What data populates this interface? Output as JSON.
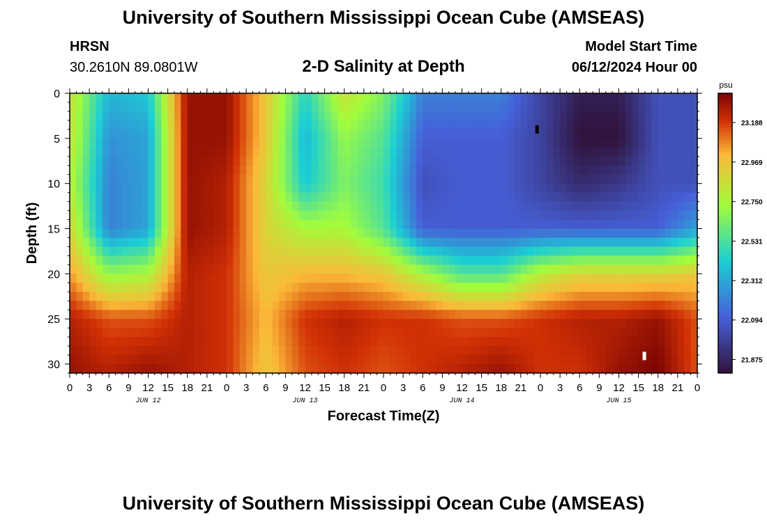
{
  "header": {
    "title": "University of Southern Mississippi Ocean Cube (AMSEAS)",
    "station": "HRSN",
    "coords": "30.2610N  89.0801W",
    "plot_title": "2-D Salinity at Depth",
    "model_start_label": "Model Start Time",
    "model_start_value": "06/12/2024 Hour 00"
  },
  "footer": {
    "title": "University of Southern Mississippi Ocean Cube (AMSEAS)"
  },
  "colors": {
    "min": "#30123b",
    "low": "#4660d8",
    "mid_low": "#1bcfd4",
    "mid": "#a2fc3c",
    "mid_high": "#fbb938",
    "max": "#7a0403"
  },
  "chart_data": {
    "type": "heatmap",
    "title": "2-D Salinity at Depth",
    "xlabel": "Forecast Time(Z)",
    "ylabel": "Depth (ft)",
    "colorbar_unit": "psu",
    "colorbar_ticks": [
      "23.188",
      "22.969",
      "22.750",
      "22.531",
      "22.312",
      "22.094",
      "21.875"
    ],
    "colorbar_range": [
      21.8,
      23.35
    ],
    "xlim": [
      0,
      96
    ],
    "ylim": [
      31,
      0
    ],
    "x_tick_labels": [
      "0",
      "3",
      "6",
      "9",
      "12",
      "15",
      "18",
      "21",
      "0",
      "3",
      "6",
      "9",
      "12",
      "15",
      "18",
      "21",
      "0",
      "3",
      "6",
      "9",
      "12",
      "15",
      "18",
      "21",
      "0",
      "3",
      "6",
      "9",
      "12",
      "15",
      "18",
      "21",
      "0"
    ],
    "day_labels": [
      "JUN 12",
      "JUN 13",
      "JUN 14",
      "JUN 15"
    ],
    "y_ticks": [
      0,
      5,
      10,
      15,
      20,
      25,
      30
    ],
    "x_hours": [
      0,
      6,
      12,
      18,
      24,
      30,
      36,
      42,
      48,
      54,
      60,
      66,
      72,
      78,
      84,
      90,
      96
    ],
    "depths_ft": [
      0,
      5,
      10,
      15,
      20,
      25,
      31
    ],
    "values": [
      [
        22.85,
        22.35,
        22.4,
        23.3,
        23.3,
        22.95,
        22.45,
        22.85,
        22.65,
        22.2,
        22.2,
        22.2,
        22.0,
        21.85,
        21.85,
        22.05,
        22.05
      ],
      [
        22.85,
        22.25,
        22.3,
        23.3,
        23.3,
        22.95,
        22.35,
        22.7,
        22.55,
        22.1,
        22.1,
        22.1,
        22.0,
        21.8,
        21.8,
        22.05,
        22.05
      ],
      [
        22.8,
        22.2,
        22.3,
        23.3,
        23.25,
        22.9,
        22.4,
        22.65,
        22.5,
        22.05,
        22.1,
        22.1,
        22.0,
        21.9,
        21.95,
        22.05,
        22.05
      ],
      [
        22.9,
        22.2,
        22.3,
        23.3,
        23.25,
        22.9,
        22.75,
        22.75,
        22.55,
        22.1,
        22.1,
        22.1,
        22.1,
        22.1,
        22.1,
        22.1,
        22.3
      ],
      [
        23.05,
        22.7,
        22.75,
        23.25,
        23.2,
        22.95,
        23.0,
        23.0,
        22.95,
        22.75,
        22.55,
        22.55,
        22.8,
        22.9,
        22.9,
        22.9,
        22.95
      ],
      [
        23.25,
        23.15,
        23.15,
        23.25,
        23.2,
        23.0,
        23.2,
        23.25,
        23.2,
        23.2,
        23.15,
        23.15,
        23.2,
        23.25,
        23.25,
        23.3,
        23.15
      ],
      [
        23.3,
        23.25,
        23.3,
        23.25,
        23.2,
        22.95,
        23.15,
        23.2,
        23.15,
        23.2,
        23.25,
        23.3,
        23.2,
        23.2,
        23.3,
        23.35,
        23.15
      ]
    ],
    "markers": [
      {
        "hour": 71.5,
        "depth": 4,
        "color": "black"
      },
      {
        "hour": 87.9,
        "depth": 29.1,
        "color": "white"
      }
    ]
  }
}
